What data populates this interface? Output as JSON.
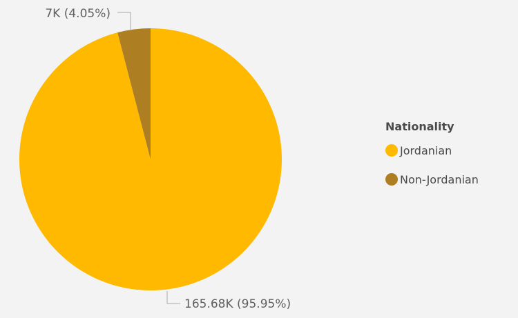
{
  "chart_data": {
    "type": "pie",
    "legend": {
      "title": "Nationality",
      "placement": "right"
    },
    "slices": [
      {
        "name": "Jordanian",
        "value": 165.68,
        "display": "165.68K",
        "percent": 95.95,
        "label": "165.68K (95.95%)",
        "color": "#FFB900"
      },
      {
        "name": "Non-Jordanian",
        "value": 7,
        "display": "7K",
        "percent": 4.05,
        "label": "7K (4.05%)",
        "color": "#AD7E22"
      }
    ]
  },
  "background_color": "#F3F3F3"
}
